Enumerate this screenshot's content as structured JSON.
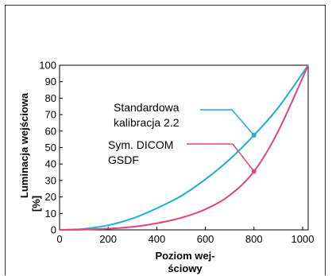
{
  "chart_data": {
    "type": "line",
    "xlabel": [
      "Poziom wej-",
      "ściowy"
    ],
    "ylabel": [
      "Luminacja wejściowa",
      "[%]"
    ],
    "xlim": [
      0,
      1023
    ],
    "ylim": [
      0,
      100
    ],
    "x_ticks": [
      "0",
      "200",
      "400",
      "600",
      "800",
      "1000"
    ],
    "y_ticks": [
      "0",
      "10",
      "20",
      "30",
      "40",
      "50",
      "60",
      "70",
      "80",
      "90",
      "100"
    ],
    "grid": false,
    "series": [
      {
        "name": "Standardowa kalibracja 2.2",
        "color": "#1aaed8",
        "x": [
          0,
          100,
          200,
          300,
          400,
          500,
          600,
          700,
          800,
          900,
          1023
        ],
        "y": [
          0,
          0.6,
          2.8,
          6.9,
          13.1,
          20.6,
          30.7,
          42.8,
          57.5,
          74.3,
          100
        ]
      },
      {
        "name": "Sym. DICOM GSDF",
        "color": "#e0457d",
        "x": [
          0,
          100,
          200,
          300,
          400,
          500,
          600,
          700,
          800,
          900,
          1023
        ],
        "y": [
          0,
          0.2,
          0.7,
          1.8,
          4.0,
          7.3,
          12.5,
          21.0,
          35.5,
          60.0,
          100
        ]
      }
    ],
    "annotations": [
      {
        "lines": [
          "Standardowa",
          "kalibracja 2.2"
        ],
        "series": 0,
        "point_x": 800,
        "point_y": 57.5
      },
      {
        "lines": [
          "Sym. DICOM",
          "GSDF"
        ],
        "series": 1,
        "point_x": 800,
        "point_y": 35.5
      }
    ]
  }
}
